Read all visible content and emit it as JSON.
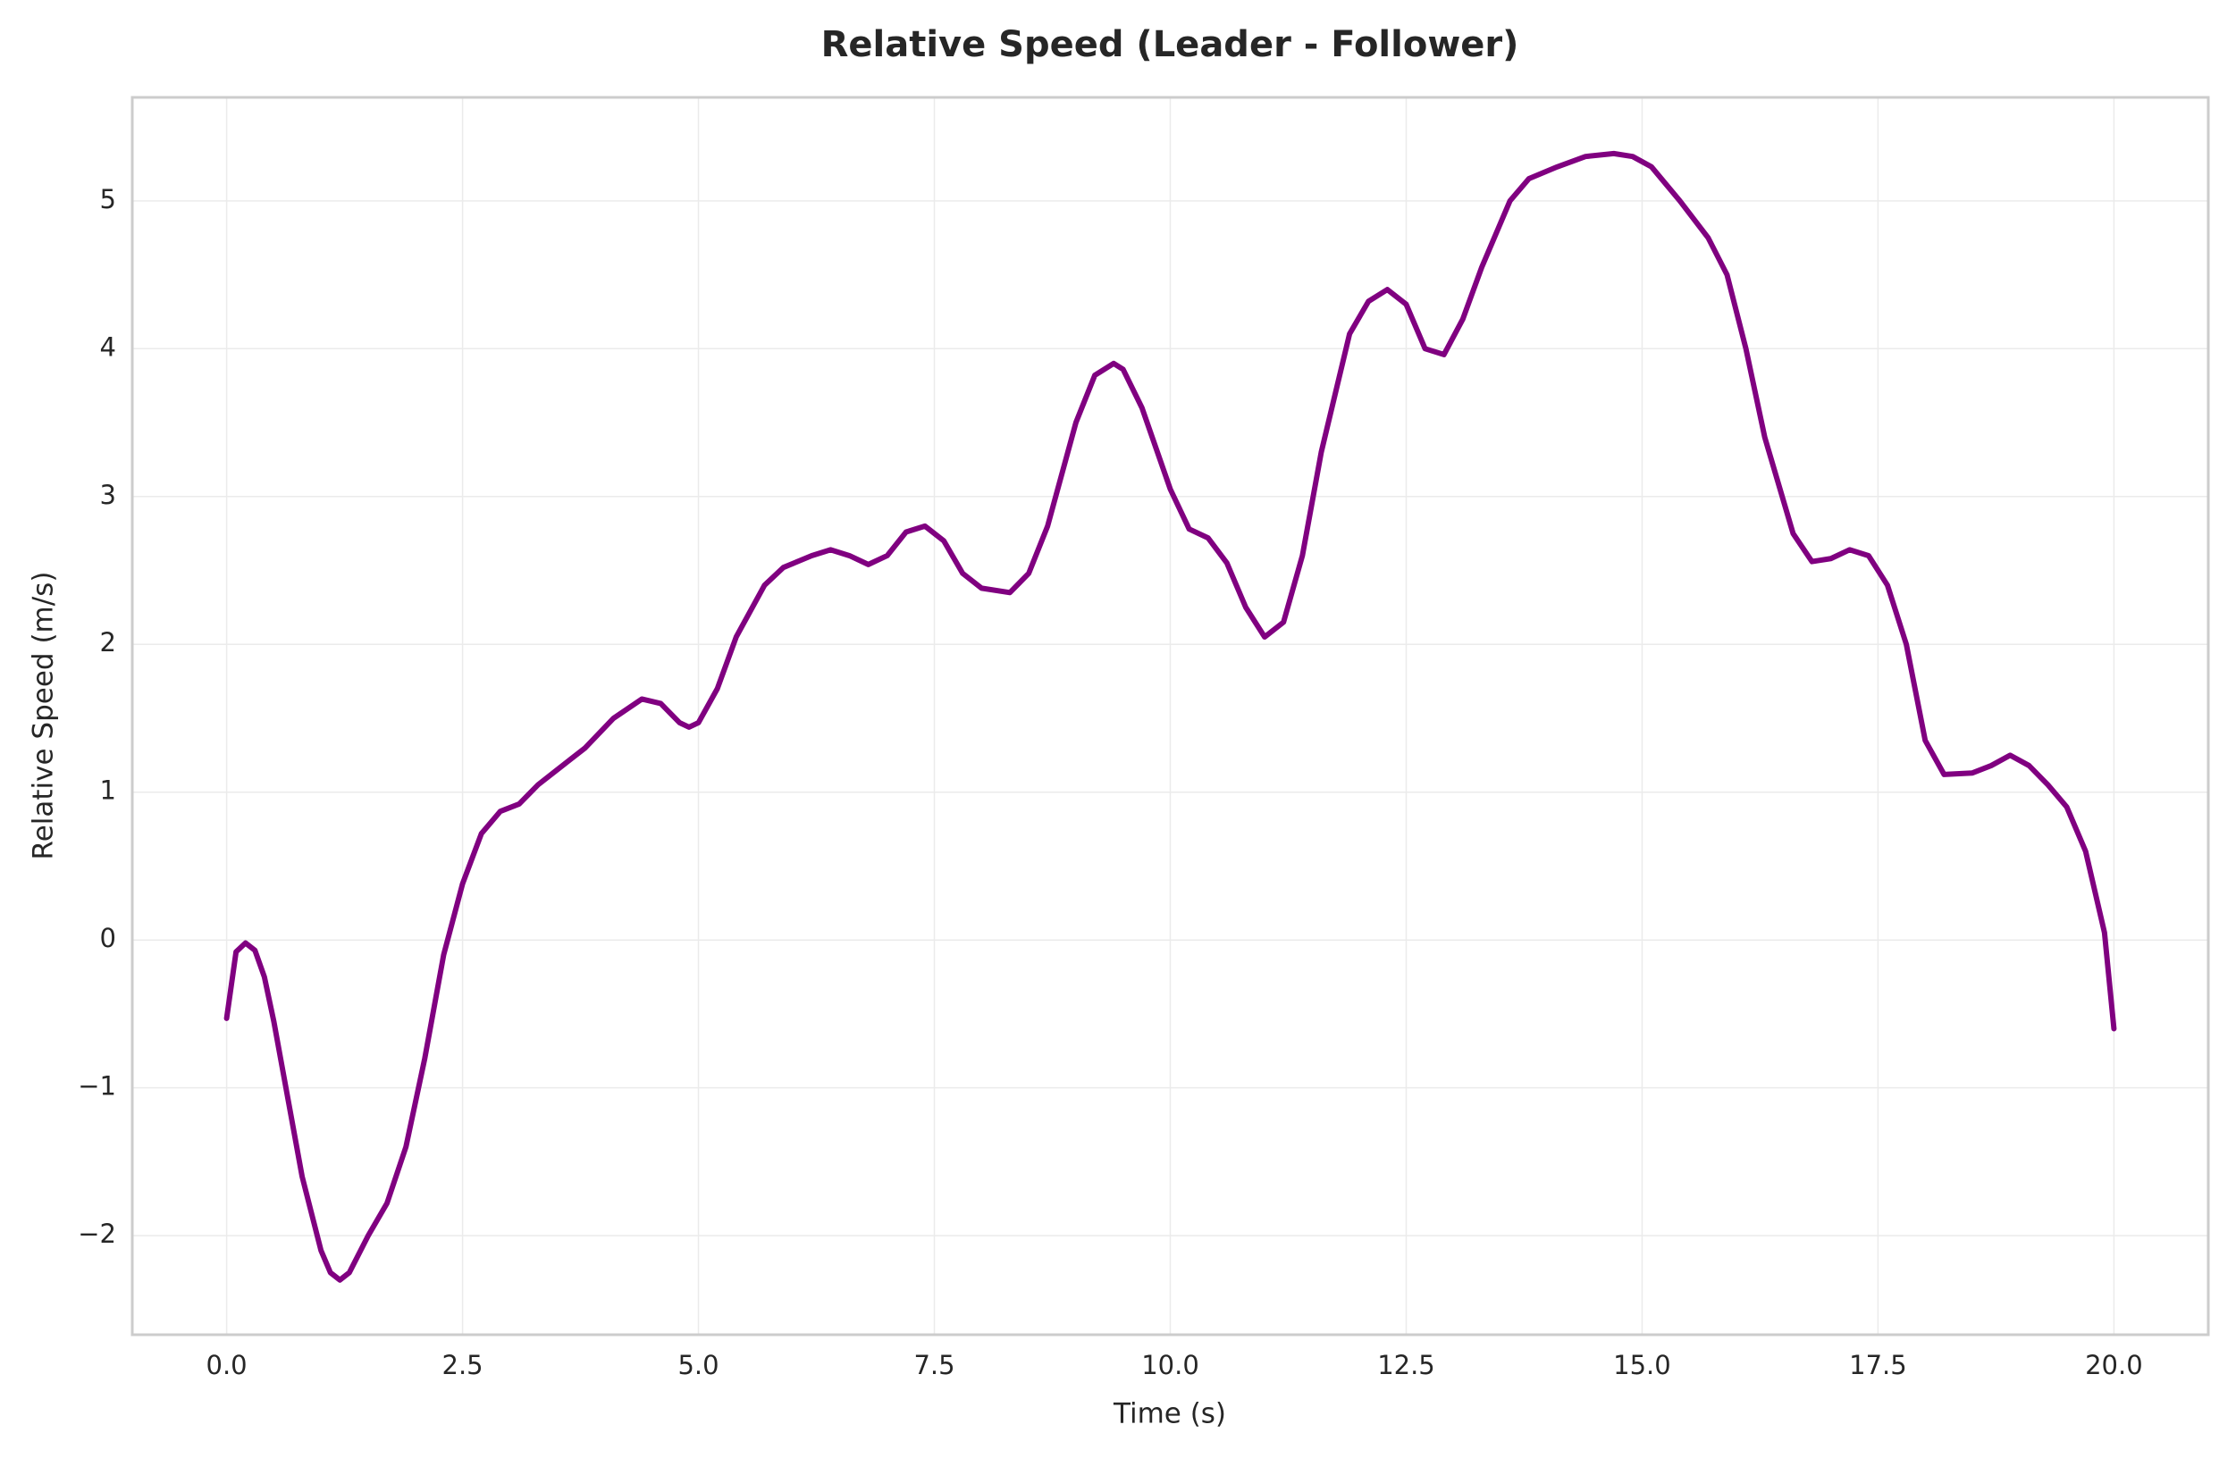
{
  "chart_data": {
    "type": "line",
    "title": "Relative Speed (Leader - Follower)",
    "xlabel": "Time (s)",
    "ylabel": "Relative Speed (m/s)",
    "x": [
      0,
      0.1,
      0.2,
      0.3,
      0.4,
      0.5,
      0.6,
      0.8,
      1.0,
      1.1,
      1.2,
      1.3,
      1.5,
      1.7,
      1.9,
      2.1,
      2.3,
      2.5,
      2.7,
      2.9,
      3.1,
      3.3,
      3.5,
      3.8,
      4.1,
      4.4,
      4.6,
      4.8,
      4.9,
      5.0,
      5.2,
      5.4,
      5.7,
      5.9,
      6.2,
      6.4,
      6.6,
      6.8,
      7.0,
      7.2,
      7.4,
      7.6,
      7.8,
      8.0,
      8.3,
      8.5,
      8.7,
      9.0,
      9.2,
      9.4,
      9.5,
      9.7,
      10.0,
      10.2,
      10.4,
      10.6,
      10.8,
      11.0,
      11.2,
      11.4,
      11.6,
      11.9,
      12.1,
      12.3,
      12.5,
      12.7,
      12.9,
      13.1,
      13.3,
      13.6,
      13.8,
      14.1,
      14.4,
      14.7,
      14.9,
      15.1,
      15.4,
      15.7,
      15.9,
      16.1,
      16.3,
      16.6,
      16.8,
      17.0,
      17.2,
      17.4,
      17.6,
      17.8,
      18.0,
      18.2,
      18.5,
      18.7,
      18.9,
      19.1,
      19.3,
      19.5,
      19.7,
      19.9,
      20.0
    ],
    "series": [
      {
        "name": "Relative Speed",
        "color": "#800080",
        "values": [
          -0.53,
          -0.08,
          -0.02,
          -0.07,
          -0.25,
          -0.55,
          -0.9,
          -1.6,
          -2.1,
          -2.25,
          -2.3,
          -2.25,
          -2.0,
          -1.78,
          -1.4,
          -0.8,
          -0.1,
          0.38,
          0.72,
          0.87,
          0.92,
          1.05,
          1.15,
          1.3,
          1.5,
          1.63,
          1.6,
          1.47,
          1.44,
          1.47,
          1.7,
          2.05,
          2.4,
          2.52,
          2.6,
          2.64,
          2.6,
          2.54,
          2.6,
          2.76,
          2.8,
          2.7,
          2.48,
          2.38,
          2.35,
          2.48,
          2.8,
          3.5,
          3.82,
          3.9,
          3.86,
          3.6,
          3.05,
          2.78,
          2.72,
          2.55,
          2.25,
          2.05,
          2.15,
          2.6,
          3.3,
          4.1,
          4.32,
          4.4,
          4.3,
          4.0,
          3.96,
          4.2,
          4.55,
          5.0,
          5.15,
          5.23,
          5.3,
          5.32,
          5.3,
          5.23,
          5.0,
          4.75,
          4.5,
          4.0,
          3.4,
          2.75,
          2.56,
          2.58,
          2.64,
          2.6,
          2.4,
          2.0,
          1.35,
          1.12,
          1.13,
          1.18,
          1.25,
          1.18,
          1.05,
          0.9,
          0.6,
          0.05,
          -0.6
        ]
      }
    ],
    "xlim": [
      -1.0,
      21.0
    ],
    "ylim": [
      -2.67,
      5.7
    ],
    "xticks": [
      {
        "value": 0,
        "label": "0.0"
      },
      2.5,
      {
        "value": 5,
        "label": "5.0"
      },
      7.5,
      {
        "value": 10,
        "label": "10.0"
      },
      12.5,
      {
        "value": 15,
        "label": "15.0"
      },
      17.5,
      {
        "value": 20,
        "label": "20.0"
      }
    ],
    "yticks": [
      {
        "value": -2,
        "label": "−2"
      },
      {
        "value": -1,
        "label": "−1"
      },
      0,
      1,
      2,
      3,
      4,
      5
    ],
    "grid": true
  }
}
